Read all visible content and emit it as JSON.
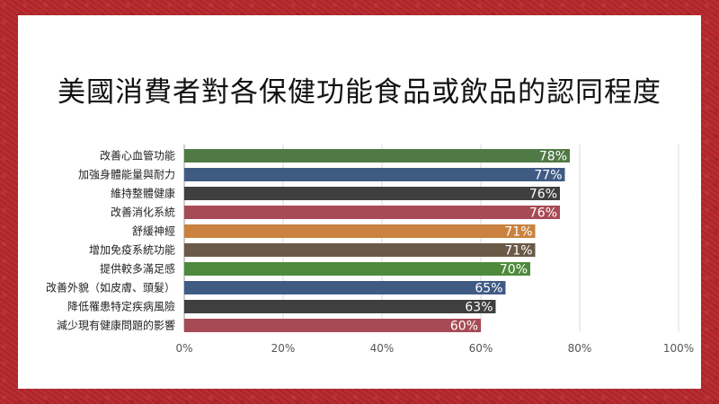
{
  "chart_data": {
    "type": "bar",
    "orientation": "horizontal",
    "title": "美國消費者對各保健功能食品或飲品的認同程度",
    "categories": [
      "改善心血管功能",
      "加強身體能量與耐力",
      "維持整體健康",
      "改善消化系統",
      "舒緩神經",
      "增加免疫系統功能",
      "提供較多滿足感",
      "改善外貌（如皮膚、頭髮）",
      "降低罹患特定疾病風險",
      "減少現有健康問題的影響"
    ],
    "values": [
      78,
      77,
      76,
      76,
      71,
      71,
      70,
      65,
      63,
      60
    ],
    "value_labels": [
      "78%",
      "77%",
      "76%",
      "76%",
      "71%",
      "71%",
      "70%",
      "65%",
      "63%",
      "60%"
    ],
    "bar_colors": [
      "#4f7a45",
      "#3f5b84",
      "#3f3f3f",
      "#a64b55",
      "#c9823f",
      "#6b5a48",
      "#4f8a3c",
      "#3f5b84",
      "#3f3f3f",
      "#a64b55"
    ],
    "xlim": [
      0,
      100
    ],
    "x_ticks": [
      "0%",
      "20%",
      "40%",
      "60%",
      "80%",
      "100%"
    ],
    "grid": true,
    "legend": "none"
  }
}
